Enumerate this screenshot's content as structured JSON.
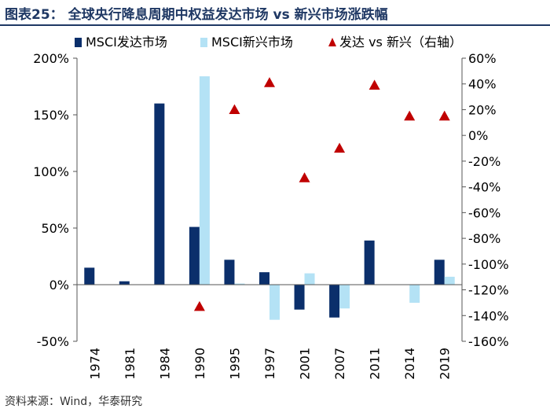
{
  "header": {
    "title": "图表25：  全球央行降息周期中权益发达市场 vs 新兴市场涨跌幅"
  },
  "footer": {
    "source": "资料来源：Wind，华泰研究"
  },
  "colors": {
    "developed": "#0b2f6b",
    "emerging": "#b4e2f5",
    "ratio": "#c00000",
    "axis": "#555555",
    "title": "#1f3864"
  },
  "chart_data": {
    "type": "bar",
    "categories": [
      "1974",
      "1981",
      "1984",
      "1990",
      "1995",
      "1997",
      "2001",
      "2007",
      "2011",
      "2014",
      "2019"
    ],
    "series": [
      {
        "name": "MSCI发达市场",
        "type": "bar",
        "axis": "left",
        "values": [
          15,
          3,
          160,
          51,
          22,
          11,
          -22,
          -29,
          39,
          null,
          22
        ]
      },
      {
        "name": "MSCI新兴市场",
        "type": "bar",
        "axis": "left",
        "values": [
          null,
          null,
          null,
          184,
          1,
          -31,
          10,
          -21,
          null,
          -16,
          7
        ]
      },
      {
        "name": "发达 vs 新兴（右轴）",
        "type": "scatter",
        "axis": "right",
        "values": [
          null,
          null,
          null,
          -133,
          20,
          41,
          -33,
          -10,
          39,
          15,
          15
        ]
      }
    ],
    "left_axis": {
      "min": -50,
      "max": 200,
      "step": 50,
      "suffix": "%"
    },
    "right_axis": {
      "min": -160,
      "max": 60,
      "step": 20,
      "suffix": "%"
    },
    "legend_position": "top",
    "xlabel": "",
    "ylabel": ""
  }
}
